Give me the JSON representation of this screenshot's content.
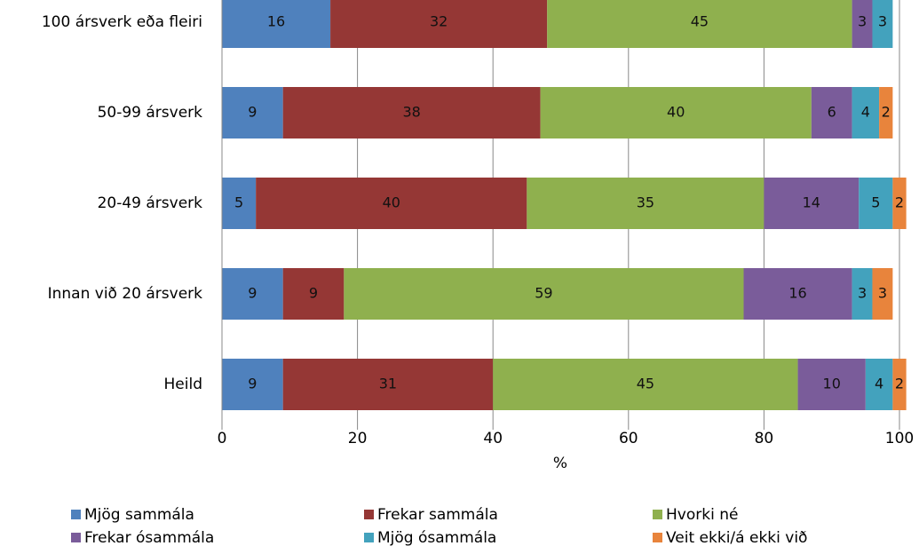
{
  "chart_data": {
    "type": "stacked_barh",
    "categories": [
      "100 ársverk eða fleiri",
      "50-99 ársverk",
      "20-49 ársverk",
      "Innan við 20 ársverk",
      "Heild"
    ],
    "series": [
      {
        "name": "Mjög sammála",
        "color": "#4f81bd",
        "values": [
          16,
          9,
          5,
          9,
          9
        ]
      },
      {
        "name": "Frekar sammála",
        "color": "#953735",
        "values": [
          32,
          38,
          40,
          9,
          31
        ]
      },
      {
        "name": "Hvorki né",
        "color": "#8fb04e",
        "values": [
          45,
          40,
          35,
          59,
          45
        ]
      },
      {
        "name": "Frekar ósammála",
        "color": "#7a5c9a",
        "values": [
          3,
          6,
          14,
          16,
          10
        ]
      },
      {
        "name": "Mjög ósammála",
        "color": "#43a2bd",
        "values": [
          3,
          4,
          5,
          3,
          4
        ]
      },
      {
        "name": "Veit ekki/á ekki við",
        "color": "#e8843c",
        "values": [
          null,
          2,
          2,
          3,
          2
        ]
      }
    ],
    "xlabel": "%",
    "xlim": [
      0,
      100
    ],
    "xticks": [
      0,
      20,
      40,
      60,
      80,
      100
    ],
    "grid": true,
    "legend": "bottom"
  }
}
